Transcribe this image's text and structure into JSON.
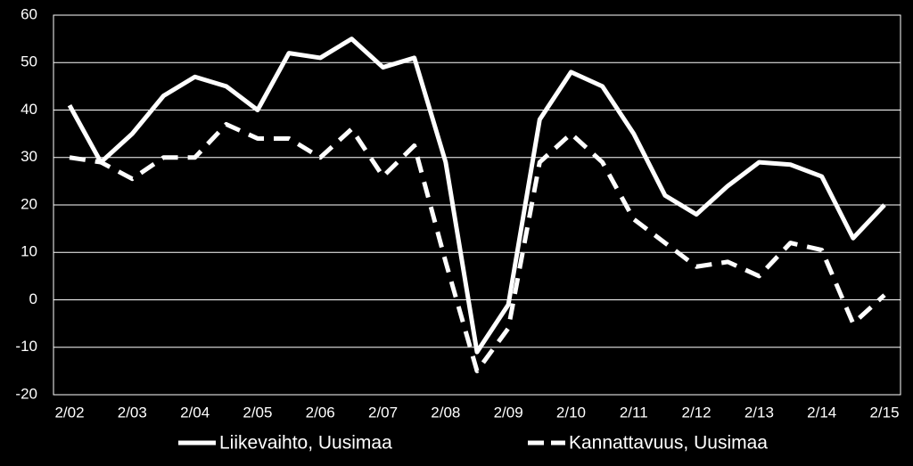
{
  "chart_data": {
    "type": "line",
    "categories": [
      "2/02",
      null,
      "2/03",
      null,
      "2/04",
      null,
      "2/05",
      null,
      "2/06",
      null,
      "2/07",
      null,
      "2/08",
      null,
      "2/09",
      null,
      "2/10",
      null,
      "2/11",
      null,
      "2/12",
      null,
      "2/13",
      null,
      "2/14",
      null,
      "2/15"
    ],
    "series": [
      {
        "name": "Liikevaihto, Uusimaa",
        "color": "#ffffff",
        "dash": false,
        "values": [
          41,
          29,
          35,
          43,
          47,
          45,
          40,
          52,
          51,
          55,
          49,
          51,
          29,
          -11,
          -1,
          38,
          48,
          45,
          35,
          22,
          18,
          24,
          29,
          28.5,
          26,
          13,
          20
        ]
      },
      {
        "name": "Kannattavuus, Uusimaa",
        "color": "#ffffff",
        "dash": true,
        "values": [
          30,
          29,
          25.5,
          30,
          30,
          37,
          34,
          34,
          30,
          36,
          26,
          32.5,
          8,
          -15,
          -6,
          29,
          35,
          29,
          17,
          12,
          7,
          8,
          5,
          12,
          10.5,
          -5,
          1
        ]
      }
    ],
    "ylim": [
      -20,
      60
    ],
    "yticks": [
      -20,
      -10,
      0,
      10,
      20,
      30,
      40,
      50,
      60
    ],
    "grid": true
  }
}
